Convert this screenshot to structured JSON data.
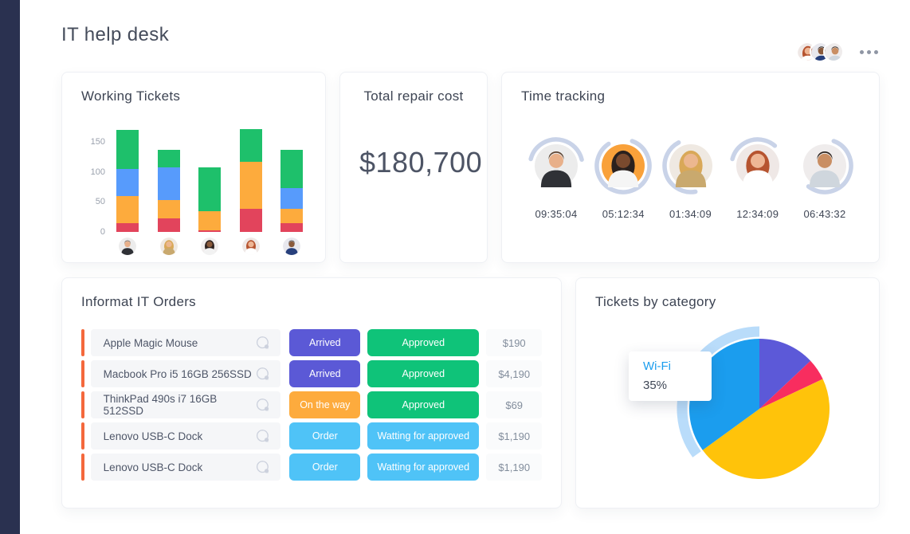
{
  "header": {
    "title": "IT help desk",
    "avatars": [
      "woman-red",
      "man-navy",
      "man-tan"
    ],
    "menu": "more-options"
  },
  "colors": {
    "sidebar": "#2a3150",
    "bar_red": "#e2445c",
    "bar_orange": "#fdab3d",
    "bar_blue": "#579bfc",
    "bar_green": "#1ec06b",
    "status_purple": "#5b59d6",
    "status_green": "#0fc379",
    "status_orange": "#fdab3d",
    "status_lightblue": "#4fc3f7",
    "row_accent": "#f4683c",
    "ring": "#c9d3e8",
    "pie_purple": "#5c59d8",
    "pie_pink": "#f82d5f",
    "pie_yellow": "#ffc30a",
    "pie_blue": "#1b9dee",
    "pie_halo": "#b9dcfa"
  },
  "avatars": {
    "man-dark-shirt": {
      "bg": "#ececec",
      "skin": "#e8b08a",
      "hair": "#5d4432",
      "shirt": "#2f3136",
      "long_hair": false
    },
    "woman-blonde": {
      "bg": "#efe9e2",
      "skin": "#ecb78f",
      "hair": "#d9a858",
      "shirt": "#c9a96e",
      "long_hair": true
    },
    "woman-dark": {
      "bg": "#f0eded",
      "skin": "#8a5a3b",
      "hair": "#2f2320",
      "shirt": "#f2f2f2",
      "long_hair": true
    },
    "woman-red": {
      "bg": "#efe8e6",
      "skin": "#eeb695",
      "hair": "#b65430",
      "shirt": "#ffffff",
      "long_hair": true
    },
    "man-navy": {
      "bg": "#e8e8ee",
      "skin": "#8a5a3b",
      "hair": "#1f1a18",
      "shirt": "#27407c",
      "long_hair": false
    },
    "man-tan": {
      "bg": "#efecec",
      "skin": "#c98e63",
      "hair": "#2d241f",
      "shirt": "#cfd6dd",
      "long_hair": false
    },
    "woman-curly-orange": {
      "bg": "#f9a13a",
      "skin": "#7a4a2e",
      "hair": "#2a211e",
      "shirt": "#f5f5f5",
      "long_hair": true
    }
  },
  "cards": {
    "working_tickets": {
      "title": "Working Tickets",
      "chart_data": {
        "type": "bar",
        "stacked": true,
        "categories": [
          "avatar-man-dark-shirt",
          "avatar-woman-blonde",
          "avatar-woman-dark",
          "avatar-woman-red",
          "avatar-man-navy"
        ],
        "category_avatars": [
          "man-dark-shirt",
          "woman-blonde",
          "woman-dark",
          "woman-red",
          "man-navy"
        ],
        "series": [
          {
            "name": "red",
            "color_key": "bar_red",
            "values": [
              15,
              22,
              3,
              38,
              14
            ]
          },
          {
            "name": "orange",
            "color_key": "bar_orange",
            "values": [
              45,
              31,
              32,
              79,
              24
            ]
          },
          {
            "name": "blue",
            "color_key": "bar_blue",
            "values": [
              45,
              54,
              0,
              0,
              35
            ]
          },
          {
            "name": "green",
            "color_key": "bar_green",
            "values": [
              65,
              29,
              73,
              54,
              63
            ]
          }
        ],
        "yticks": [
          0,
          50,
          100,
          150
        ],
        "ylim": [
          0,
          175
        ],
        "grid": false,
        "legend": "none"
      }
    },
    "total_repair_cost": {
      "title": "Total repair cost",
      "value": "$180,700"
    },
    "time_tracking": {
      "title": "Time tracking",
      "entries": [
        {
          "avatar": "man-dark-shirt",
          "time": "09:35:04",
          "ring_pct": 42,
          "ring_rotate": -165
        },
        {
          "avatar": "woman-curly-orange",
          "time": "05:12:34",
          "ring_pct": 85,
          "ring_rotate": -70
        },
        {
          "avatar": "woman-blonde",
          "time": "01:34:09",
          "ring_pct": 45,
          "ring_rotate": 80
        },
        {
          "avatar": "woman-red",
          "time": "12:34:09",
          "ring_pct": 32,
          "ring_rotate": -165
        },
        {
          "avatar": "man-tan",
          "time": "06:43:32",
          "ring_pct": 55,
          "ring_rotate": -70
        }
      ]
    },
    "orders": {
      "title": "Informat IT Orders",
      "rows": [
        {
          "name": "Apple Magic Mouse",
          "status1": {
            "label": "Arrived",
            "color_key": "status_purple"
          },
          "status2": {
            "label": "Approved",
            "color_key": "status_green"
          },
          "price": "$190"
        },
        {
          "name": "Macbook Pro i5 16GB 256SSD",
          "status1": {
            "label": "Arrived",
            "color_key": "status_purple"
          },
          "status2": {
            "label": "Approved",
            "color_key": "status_green"
          },
          "price": "$4,190"
        },
        {
          "name": "ThinkPad 490s  i7 16GB 512SSD",
          "status1": {
            "label": "On the way",
            "color_key": "status_orange"
          },
          "status2": {
            "label": "Approved",
            "color_key": "status_green"
          },
          "price": "$69"
        },
        {
          "name": "Lenovo USB-C Dock",
          "status1": {
            "label": "Order",
            "color_key": "status_lightblue"
          },
          "status2": {
            "label": "Watting for approved",
            "color_key": "status_lightblue"
          },
          "price": "$1,190"
        },
        {
          "name": "Lenovo USB-C Dock",
          "status1": {
            "label": "Order",
            "color_key": "status_lightblue"
          },
          "status2": {
            "label": "Watting for approved",
            "color_key": "status_lightblue"
          },
          "price": "$1,190"
        }
      ]
    },
    "tickets_by_category": {
      "title": "Tickets by category",
      "chart_data": {
        "type": "pie",
        "slices": [
          {
            "pct": 13,
            "color_key": "pie_purple"
          },
          {
            "pct": 5,
            "color_key": "pie_pink"
          },
          {
            "pct": 47,
            "color_key": "pie_yellow"
          },
          {
            "pct": 35,
            "color_key": "pie_blue",
            "label": "Wi-Fi",
            "highlighted": true
          }
        ],
        "start_angle_deg": -90,
        "direction": "clockwise",
        "legend": "none"
      },
      "tooltip": {
        "label": "Wi-Fi",
        "value": "35%"
      }
    }
  }
}
